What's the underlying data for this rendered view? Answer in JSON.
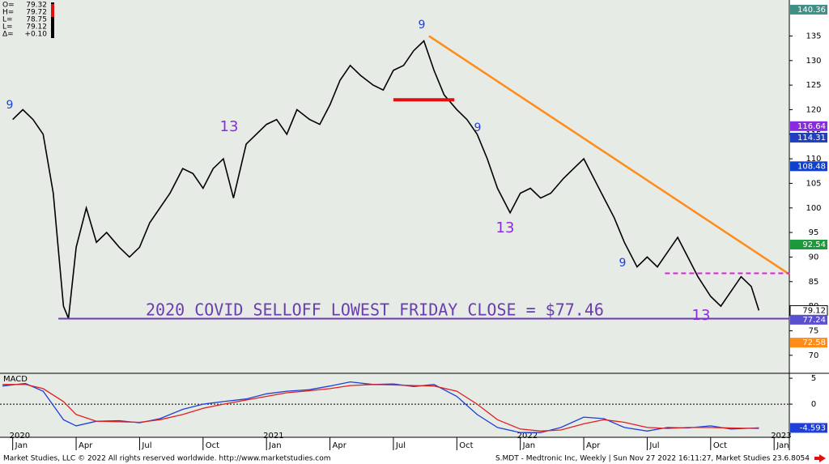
{
  "header": [
    {
      "label": "O=",
      "value": 79.32
    },
    {
      "label": "H=",
      "value": 79.72
    },
    {
      "label": "L=",
      "value": 78.75
    },
    {
      "label": "L=",
      "value": 79.12
    },
    {
      "label": "Δ=",
      "value": 0.1,
      "value_label": "+0.10"
    }
  ],
  "footer": {
    "left": "Market Studies, LLC © 2022 All rights reserved worldwide. http://www.marketstudies.com",
    "right": "S.MDT - Medtronic Inc, Weekly | Sun Nov 27 2022 16:11:27, Market Studies 23.6.8054"
  },
  "chart_data": [
    {
      "type": "line",
      "xlim": [
        2019.95,
        2023.06
      ],
      "ylim": [
        66.5,
        141.5
      ],
      "yticks": [
        70,
        75,
        80,
        85,
        90,
        95,
        100,
        105,
        110,
        115,
        120,
        125,
        130,
        135
      ],
      "x": [
        2020.0,
        2020.04,
        2020.08,
        2020.12,
        2020.16,
        2020.2,
        2020.22,
        2020.25,
        2020.29,
        2020.33,
        2020.37,
        2020.42,
        2020.46,
        2020.5,
        2020.54,
        2020.58,
        2020.62,
        2020.67,
        2020.71,
        2020.75,
        2020.79,
        2020.83,
        2020.87,
        2020.92,
        2020.96,
        2021.0,
        2021.04,
        2021.08,
        2021.12,
        2021.17,
        2021.21,
        2021.25,
        2021.29,
        2021.33,
        2021.37,
        2021.42,
        2021.46,
        2021.5,
        2021.54,
        2021.58,
        2021.62,
        2021.66,
        2021.7,
        2021.75,
        2021.79,
        2021.83,
        2021.87,
        2021.91,
        2021.96,
        2022.0,
        2022.04,
        2022.08,
        2022.12,
        2022.17,
        2022.21,
        2022.25,
        2022.29,
        2022.33,
        2022.37,
        2022.41,
        2022.46,
        2022.5,
        2022.54,
        2022.58,
        2022.62,
        2022.66,
        2022.7,
        2022.75,
        2022.79,
        2022.83,
        2022.87,
        2022.91,
        2022.94
      ],
      "series": [
        {
          "color": "#000000",
          "values": [
            118,
            120,
            118,
            115,
            103,
            80,
            77.5,
            92,
            100,
            93,
            95,
            92,
            90,
            92,
            97,
            100,
            103,
            108,
            107,
            104,
            108,
            110,
            102,
            113,
            115,
            117,
            118,
            115,
            120,
            118,
            117,
            121,
            126,
            129,
            127,
            125,
            124,
            128,
            129,
            132,
            134,
            128,
            123,
            120,
            118,
            115,
            110,
            104,
            99,
            103,
            104,
            102,
            103,
            106,
            108,
            110,
            106,
            102,
            98,
            93,
            88,
            90,
            88,
            91,
            94,
            90,
            86,
            82,
            80,
            83,
            86,
            84,
            79.12
          ]
        }
      ],
      "trendline": {
        "color": "#ff8c1a",
        "x": [
          2021.64,
          2023.06
        ],
        "y": [
          135,
          86.5
        ]
      },
      "resistance": {
        "color": "#e01010",
        "x": [
          2021.5,
          2021.74
        ],
        "y": [
          122,
          122
        ]
      },
      "dashed_level": {
        "color": "#e020e0",
        "x": [
          2022.57,
          2023.06
        ],
        "y": [
          86.7,
          86.7
        ]
      },
      "support": {
        "color": "#6a3db0",
        "value": 77.46
      },
      "annotation": "2020 COVID SELLOFF LOWEST FRIDAY CLOSE = $77.46",
      "td_counts": [
        "9",
        "13",
        "13",
        "13",
        "9",
        "9",
        "9"
      ],
      "tags": [
        {
          "value": 140.36,
          "color": "#3f8f86"
        },
        {
          "value": 116.64,
          "color": "#8a2be2"
        },
        {
          "value": 114.31,
          "color": "#1f3fbf"
        },
        {
          "value": 108.48,
          "color": "#1040d0"
        },
        {
          "value": 92.54,
          "color": "#1a9a3a"
        },
        {
          "value": 79.12,
          "color": "#ffffff"
        },
        {
          "value": 77.24,
          "color": "#5a4fcf"
        },
        {
          "value": 72.58,
          "color": "#ff8c1a"
        }
      ]
    },
    {
      "type": "line",
      "title": "MACD",
      "xlim": [
        2019.95,
        2023.06
      ],
      "ylim": [
        -6.4,
        5.8
      ],
      "yticks": [
        5,
        0
      ],
      "xticks": [
        {
          "value": 2020.0,
          "label": "Jan"
        },
        {
          "value": 2020.25,
          "label": "Apr"
        },
        {
          "value": 2020.5,
          "label": "Jul"
        },
        {
          "value": 2020.75,
          "label": "Oct"
        },
        {
          "value": 2021.0,
          "label": "Jan"
        },
        {
          "value": 2021.25,
          "label": "Apr"
        },
        {
          "value": 2021.5,
          "label": "Jul"
        },
        {
          "value": 2021.75,
          "label": "Oct"
        },
        {
          "value": 2022.0,
          "label": "Jan"
        },
        {
          "value": 2022.25,
          "label": "Apr"
        },
        {
          "value": 2022.5,
          "label": "Jul"
        },
        {
          "value": 2022.75,
          "label": "Oct"
        },
        {
          "value": 2023.0,
          "label": "Jan"
        }
      ],
      "year_ticks": [
        2020,
        2021,
        2022,
        2023
      ],
      "x": [
        2019.96,
        2020.05,
        2020.12,
        2020.2,
        2020.25,
        2020.33,
        2020.42,
        2020.5,
        2020.58,
        2020.67,
        2020.75,
        2020.83,
        2020.92,
        2021.0,
        2021.08,
        2021.17,
        2021.25,
        2021.33,
        2021.42,
        2021.5,
        2021.58,
        2021.66,
        2021.75,
        2021.83,
        2021.91,
        2022.0,
        2022.08,
        2022.16,
        2022.25,
        2022.33,
        2022.41,
        2022.5,
        2022.58,
        2022.66,
        2022.75,
        2022.83,
        2022.94
      ],
      "series": [
        {
          "color": "#1e3fd8",
          "values": [
            3.5,
            4,
            2.5,
            -3,
            -4.2,
            -3.3,
            -3.2,
            -3.6,
            -2.8,
            -1,
            0,
            0.5,
            1,
            2,
            2.5,
            2.8,
            3.5,
            4.3,
            3.8,
            3.9,
            3.4,
            3.8,
            1.5,
            -2,
            -4.5,
            -5.5,
            -5.5,
            -4.5,
            -2.5,
            -2.8,
            -4.5,
            -5.2,
            -4.5,
            -4.6,
            -4.2,
            -4.8,
            -4.593
          ]
        },
        {
          "color": "#e02020",
          "values": [
            3.8,
            3.8,
            3.0,
            0.5,
            -2,
            -3.3,
            -3.4,
            -3.5,
            -3,
            -2,
            -0.8,
            0,
            0.8,
            1.5,
            2.2,
            2.6,
            3,
            3.6,
            3.8,
            3.7,
            3.6,
            3.5,
            2.5,
            0,
            -3,
            -4.8,
            -5.2,
            -5,
            -3.8,
            -3,
            -3.5,
            -4.5,
            -4.7,
            -4.5,
            -4.5,
            -4.6,
            -4.7
          ]
        }
      ],
      "tags": [
        {
          "value": -4.593,
          "color": "#1e3fd8"
        }
      ]
    }
  ]
}
